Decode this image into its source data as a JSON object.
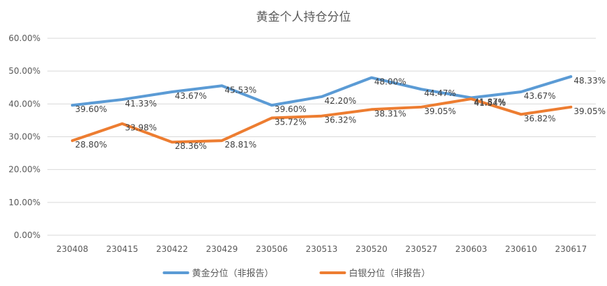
{
  "chart_data": {
    "type": "line",
    "title": "黄金个人持仓分位",
    "categories": [
      "230408",
      "230415",
      "230422",
      "230429",
      "230506",
      "230513",
      "230520",
      "230527",
      "230603",
      "230610",
      "230617"
    ],
    "ylim": [
      0,
      60
    ],
    "yticks": [
      "0.00%",
      "10.00%",
      "20.00%",
      "30.00%",
      "40.00%",
      "50.00%",
      "60.00%"
    ],
    "grid": true,
    "legend_position": "bottom",
    "series": [
      {
        "name": "黄金分位（非报告）",
        "color": "#5B9BD5",
        "values": [
          39.6,
          41.33,
          43.67,
          45.53,
          39.6,
          42.2,
          48.0,
          44.47,
          41.87,
          43.67,
          48.33
        ],
        "labels": [
          "39.60%",
          "41.33%",
          "43.67%",
          "45.53%",
          "39.60%",
          "42.20%",
          "48.00%",
          "44.47%",
          "41.87%",
          "43.67%",
          "48.33%"
        ]
      },
      {
        "name": "白银分位（非报告）",
        "color": "#ED7D31",
        "values": [
          28.8,
          33.98,
          28.36,
          28.81,
          35.72,
          36.32,
          38.31,
          39.05,
          41.54,
          36.82,
          39.05
        ],
        "labels": [
          "28.80%",
          "33.98%",
          "28.36%",
          "28.81%",
          "35.72%",
          "36.32%",
          "38.31%",
          "39.05%",
          "41.54%",
          "36.82%",
          "39.05%"
        ]
      }
    ]
  }
}
